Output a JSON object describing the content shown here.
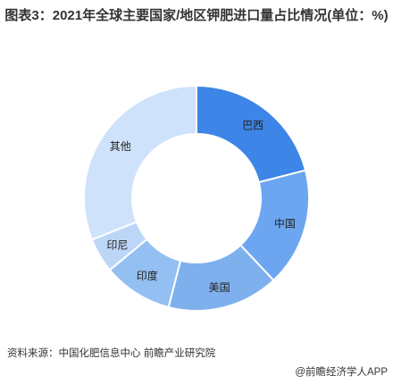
{
  "title": "图表3：2021年全球主要国家/地区钾肥进口量占比情况(单位：%)",
  "source": "资料来源：中国化肥信息中心 前瞻产业研究院",
  "brand": "@前瞻经济学人APP",
  "chart_data": {
    "type": "pie",
    "donut": true,
    "title": "图表3：2021年全球主要国家/地区钾肥进口量占比情况(单位：%)",
    "categories": [
      "巴西",
      "中国",
      "美国",
      "印度",
      "印尼",
      "其他"
    ],
    "values": [
      21,
      17,
      16,
      10,
      5,
      31
    ],
    "colors": [
      "#3d85e6",
      "#6da6f0",
      "#7fb0ee",
      "#94bff3",
      "#bcd6f8",
      "#cfe2fb"
    ],
    "legend": "none"
  }
}
